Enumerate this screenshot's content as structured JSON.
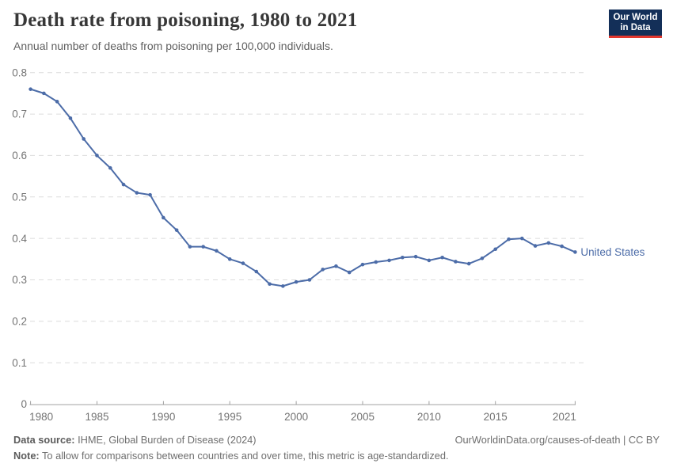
{
  "header": {
    "title": "Death rate from poisoning, 1980 to 2021",
    "subtitle": "Annual number of deaths from poisoning per 100,000 individuals.",
    "logo": {
      "line1": "Our World",
      "line2": "in Data",
      "bg_color": "#132f58",
      "bar_color": "#e2372e"
    }
  },
  "chart_data": {
    "type": "line",
    "title": "Death rate from poisoning, 1980 to 2021",
    "xlabel": "",
    "ylabel": "",
    "xlim": [
      1980,
      2021
    ],
    "ylim": [
      0,
      0.8
    ],
    "x_ticks": [
      1980,
      1985,
      1990,
      1995,
      2000,
      2005,
      2010,
      2015,
      2021
    ],
    "y_ticks": [
      0,
      0.1,
      0.2,
      0.3,
      0.4,
      0.5,
      0.6,
      0.7,
      0.8
    ],
    "grid": "horizontal-dashed",
    "legend_position": "end-of-line-label",
    "colors": {
      "line": "#4C6CA8",
      "grid": "#dcdcdc",
      "axis": "#a1a1a1",
      "tick_text": "#737373"
    },
    "series": [
      {
        "name": "United States",
        "color": "#4C6CA8",
        "x": [
          1980,
          1981,
          1982,
          1983,
          1984,
          1985,
          1986,
          1987,
          1988,
          1989,
          1990,
          1991,
          1992,
          1993,
          1994,
          1995,
          1996,
          1997,
          1998,
          1999,
          2000,
          2001,
          2002,
          2003,
          2004,
          2005,
          2006,
          2007,
          2008,
          2009,
          2010,
          2011,
          2012,
          2013,
          2014,
          2015,
          2016,
          2017,
          2018,
          2019,
          2020,
          2021
        ],
        "values": [
          0.76,
          0.75,
          0.73,
          0.69,
          0.64,
          0.6,
          0.57,
          0.53,
          0.51,
          0.505,
          0.45,
          0.42,
          0.38,
          0.38,
          0.37,
          0.35,
          0.34,
          0.32,
          0.29,
          0.285,
          0.295,
          0.3,
          0.325,
          0.333,
          0.318,
          0.337,
          0.343,
          0.347,
          0.354,
          0.356,
          0.347,
          0.354,
          0.344,
          0.339,
          0.352,
          0.374,
          0.398,
          0.4,
          0.382,
          0.389,
          0.381,
          0.367
        ]
      }
    ],
    "end_label": "United States"
  },
  "footer": {
    "source_label": "Data source:",
    "source_text": " IHME, Global Burden of Disease (2024)",
    "note_label": "Note:",
    "note_text": " To allow for comparisons between countries and over time, this metric is age-standardized.",
    "right_text": "OurWorldinData.org/causes-of-death | CC BY"
  }
}
